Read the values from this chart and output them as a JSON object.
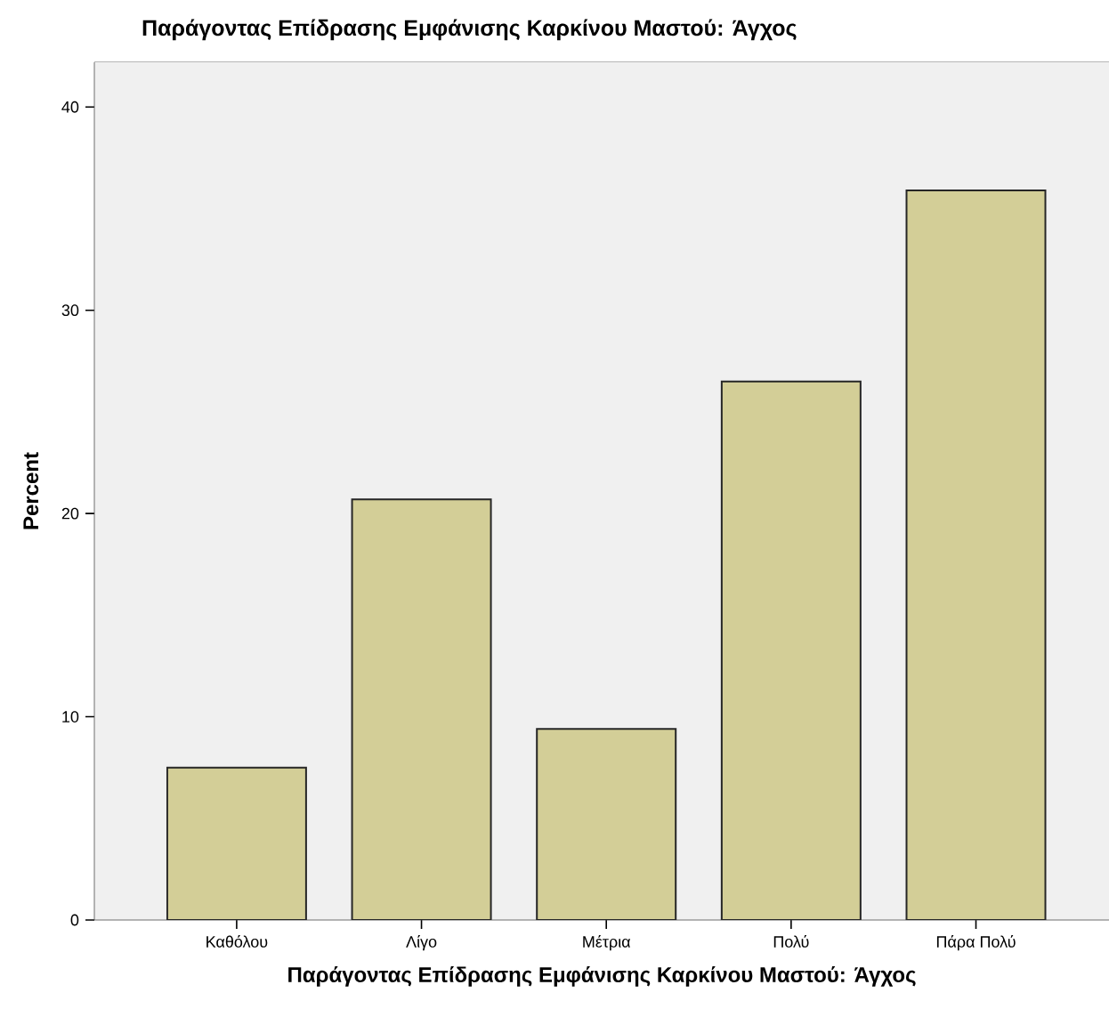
{
  "chart_data": {
    "type": "bar",
    "title": "Παράγοντας Επίδρασης Εμφάνισης Καρκίνου Μαστού: Άγχος",
    "xlabel": "Παράγοντας Επίδρασης Εμφάνισης Καρκίνου Μαστού: Άγχος",
    "ylabel": "Percent",
    "categories": [
      "Καθόλου",
      "Λίγο",
      "Μέτρια",
      "Πολύ",
      "Πάρα Πολύ"
    ],
    "values": [
      7.5,
      20.7,
      9.4,
      26.5,
      35.9
    ],
    "color": "#d3ce97",
    "ylim": [
      0,
      42.2
    ],
    "yticks": [
      0,
      10,
      20,
      30,
      40
    ],
    "grid": false
  }
}
